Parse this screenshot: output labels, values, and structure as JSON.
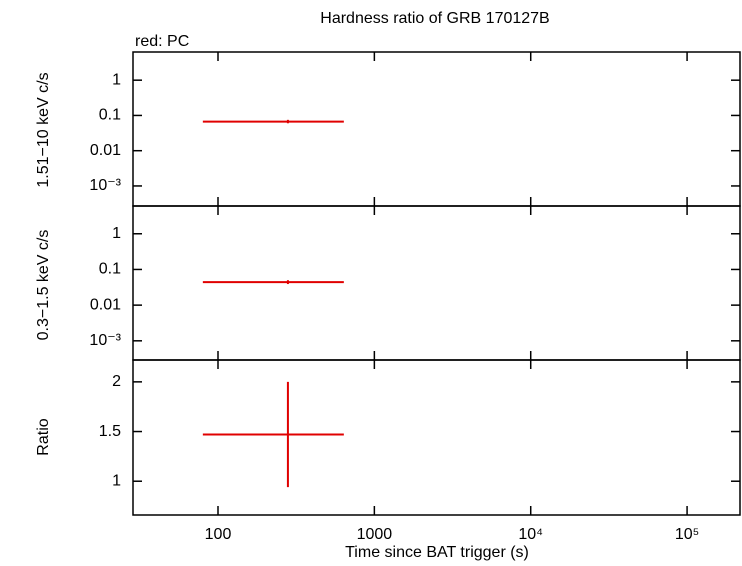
{
  "chart_data": [
    {
      "type": "errorbar",
      "title": "Hardness ratio of GRB 170127B",
      "annotation": "red: PC",
      "ylabel": "1.51−10 keV c/s",
      "log_x": true,
      "log_y": true,
      "xlim": [
        28.6,
        218000
      ],
      "xticks": [
        100,
        1000,
        {
          "value": 10000,
          "label": "10⁴"
        },
        {
          "value": 100000,
          "label": "10⁵"
        }
      ],
      "ylim": [
        0.00027,
        6.3
      ],
      "yticks": [
        1,
        0.1,
        0.01,
        {
          "value": 0.001,
          "label": "10⁻³"
        }
      ],
      "series": [
        {
          "name": "PC",
          "color": "#e00000",
          "x": [
            280
          ],
          "x_low": [
            80
          ],
          "x_high": [
            638
          ],
          "values": [
            0.067
          ],
          "y_low": [
            0.06
          ],
          "y_high": [
            0.075
          ]
        }
      ]
    },
    {
      "type": "errorbar",
      "ylabel": "0.3−1.5 keV c/s",
      "log_x": true,
      "log_y": true,
      "xlim": [
        28.6,
        218000
      ],
      "xticks": [
        100,
        1000,
        {
          "value": 10000,
          "label": "10⁴"
        },
        {
          "value": 100000,
          "label": "10⁵"
        }
      ],
      "ylim": [
        0.00029,
        6.0
      ],
      "yticks": [
        1,
        0.1,
        0.01,
        {
          "value": 0.001,
          "label": "10⁻³"
        }
      ],
      "series": [
        {
          "name": "PC",
          "color": "#e00000",
          "x": [
            280
          ],
          "x_low": [
            80
          ],
          "x_high": [
            638
          ],
          "values": [
            0.044
          ],
          "y_low": [
            0.039
          ],
          "y_high": [
            0.05
          ]
        }
      ]
    },
    {
      "type": "errorbar",
      "ylabel": "Ratio",
      "xlabel": "Time since BAT trigger (s)",
      "log_x": true,
      "log_y": false,
      "xlim": [
        28.6,
        218000
      ],
      "xticks": [
        100,
        1000,
        {
          "value": 10000,
          "label": "10⁴"
        },
        {
          "value": 100000,
          "label": "10⁵"
        }
      ],
      "ylim": [
        0.66,
        2.22
      ],
      "yticks": [
        1,
        1.5,
        2
      ],
      "series": [
        {
          "name": "PC",
          "color": "#e00000",
          "x": [
            280
          ],
          "x_low": [
            80
          ],
          "x_high": [
            638
          ],
          "values": [
            1.47
          ],
          "y_low": [
            0.94
          ],
          "y_high": [
            2.0
          ]
        }
      ]
    }
  ]
}
